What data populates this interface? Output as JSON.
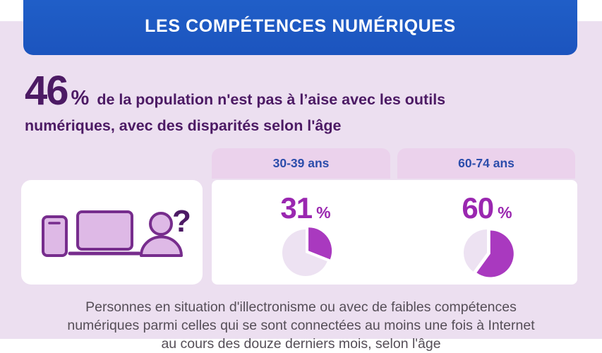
{
  "banner": {
    "title": "LES COMPÉTENCES NUMÉRIQUES"
  },
  "headline": {
    "big_number": "46",
    "percent_sign": "%",
    "text": "de la population n'est pas à l’aise avec les outils numériques, avec des disparités selon l'âge"
  },
  "age_groups": [
    {
      "label": "30-39 ans",
      "percent": "31",
      "percent_sign": "%"
    },
    {
      "label": "60-74 ans",
      "percent": "60",
      "percent_sign": "%"
    }
  ],
  "illustration": {
    "icons": [
      "smartphone-icon",
      "laptop-icon",
      "person-icon",
      "question-mark"
    ],
    "question_mark": "?"
  },
  "caption": {
    "lines": [
      "Personnes en situation d'illectronisme ou avec de faibles compétences",
      "numériques parmi celles qui se sont connectées au moins une fois à Internet",
      "au cours des douze derniers mois, selon l'âge"
    ]
  },
  "colors": {
    "banner_bg": "#1F5BC5",
    "banner_text": "#FFFFFF",
    "page_bg": "#ECDFF0",
    "top_band": "#FFFFFF",
    "headline_text": "#4C1A64",
    "pill_bg": "#EBD2EC",
    "pill_text": "#2C4DAB",
    "panel_bg": "#FFFFFF",
    "percent_label": "#9A27B0",
    "pie_filled": "#A939BF",
    "pie_remainder": "#EDE2F2",
    "icon_fill": "#DEB9E6",
    "icon_stroke": "#772D8D",
    "caption_text": "#554E57"
  },
  "chart_data": {
    "type": "pie",
    "title": "Part de la population pas à l'aise avec les outils numériques, selon l'âge",
    "unit": "%",
    "charts": [
      {
        "category": "30-39 ans",
        "value_pct": 31,
        "remainder_pct": 69
      },
      {
        "category": "60-74 ans",
        "value_pct": 60,
        "remainder_pct": 40
      }
    ],
    "value_color": "#A939BF",
    "remainder_color": "#EDE2F2",
    "start": "12 o'clock, clockwise",
    "exploded_value_slice": true,
    "legend": "none",
    "data_labels": "above each pie"
  }
}
